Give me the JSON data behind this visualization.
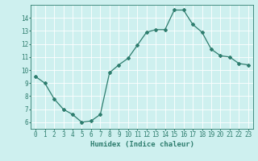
{
  "x": [
    0,
    1,
    2,
    3,
    4,
    5,
    6,
    7,
    8,
    9,
    10,
    11,
    12,
    13,
    14,
    15,
    16,
    17,
    18,
    19,
    20,
    21,
    22,
    23
  ],
  "y": [
    9.5,
    9.0,
    7.8,
    7.0,
    6.6,
    6.0,
    6.1,
    6.6,
    9.8,
    10.4,
    10.9,
    11.9,
    12.9,
    13.1,
    13.1,
    14.6,
    14.6,
    13.5,
    12.9,
    11.6,
    11.1,
    11.0,
    10.5,
    10.4
  ],
  "line_color": "#2e7d6e",
  "marker": "D",
  "markersize": 2,
  "linewidth": 0.9,
  "xlabel": "Humidex (Indice chaleur)",
  "ylabel": "",
  "xlim": [
    -0.5,
    23.5
  ],
  "ylim": [
    5.5,
    15.0
  ],
  "yticks": [
    6,
    7,
    8,
    9,
    10,
    11,
    12,
    13,
    14
  ],
  "xticks": [
    0,
    1,
    2,
    3,
    4,
    5,
    6,
    7,
    8,
    9,
    10,
    11,
    12,
    13,
    14,
    15,
    16,
    17,
    18,
    19,
    20,
    21,
    22,
    23
  ],
  "bg_color": "#cef0ef",
  "grid_color": "#ffffff",
  "tick_color": "#2e7d6e",
  "label_color": "#2e7d6e",
  "xlabel_fontsize": 6.5,
  "tick_fontsize": 5.5
}
